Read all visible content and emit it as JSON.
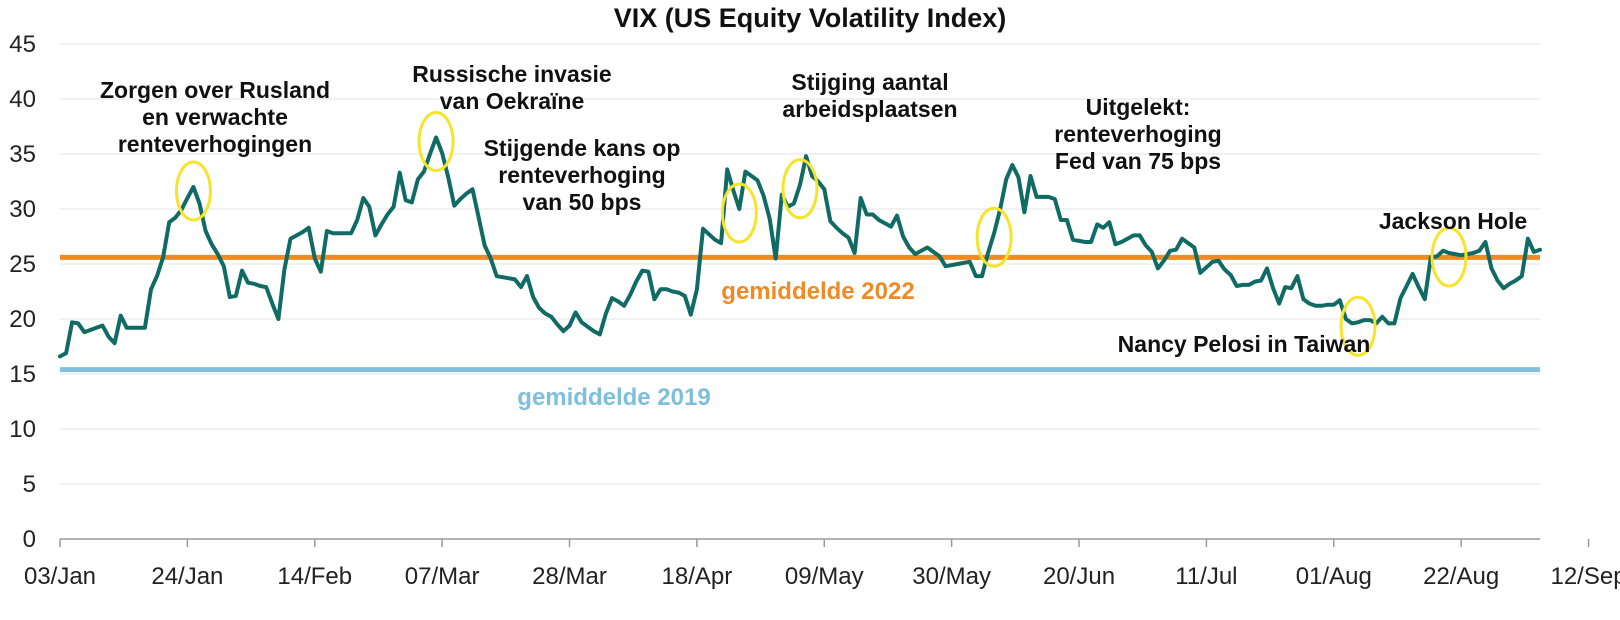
{
  "chart_data": {
    "type": "line",
    "title": "VIX (US Equity Volatility Index)",
    "xlabel": "",
    "ylabel": "",
    "ylim": [
      0,
      45
    ],
    "yticks": [
      "0",
      "5",
      "10",
      "15",
      "20",
      "25",
      "30",
      "35",
      "40",
      "45"
    ],
    "xticks": [
      "03/Jan",
      "24/Jan",
      "14/Feb",
      "07/Mar",
      "28/Mar",
      "18/Apr",
      "09/May",
      "30/May",
      "20/Jun",
      "11/Jul",
      "01/Aug",
      "22/Aug",
      "12/Sep"
    ],
    "grid": true,
    "colors": {
      "series": "#0f6b63",
      "avg_2022": "#f08a24",
      "avg_2019": "#7ec0dc",
      "highlight": "#f7e32a"
    },
    "series": [
      {
        "values": [
          16.6,
          16.9,
          19.7,
          19.6,
          18.8,
          19.0,
          19.2,
          19.4,
          18.4,
          17.8,
          20.3,
          19.2,
          19.2,
          19.2,
          19.2,
          22.7,
          23.9,
          25.6,
          28.8,
          29.2,
          29.9,
          31.0,
          32.0,
          30.5,
          28.0,
          26.8,
          25.9,
          24.8,
          22.0,
          22.1,
          24.4,
          23.3,
          23.2,
          23.0,
          22.9,
          21.4,
          20.0,
          24.5,
          27.3,
          27.6,
          27.9,
          28.3,
          25.5,
          24.3,
          28.0,
          27.8,
          27.8,
          27.8,
          27.8,
          29.0,
          31.0,
          30.2,
          27.6,
          28.6,
          29.5,
          30.2,
          33.3,
          30.8,
          30.6,
          32.7,
          33.4,
          35.0,
          36.5,
          35.1,
          32.9,
          30.3,
          30.9,
          31.4,
          31.8,
          29.3,
          26.7,
          25.5,
          23.9,
          23.8,
          23.7,
          23.6,
          22.9,
          23.9,
          22.0,
          21.0,
          20.5,
          20.2,
          19.5,
          18.9,
          19.4,
          20.6,
          19.7,
          19.3,
          18.9,
          18.6,
          20.5,
          21.9,
          21.6,
          21.2,
          22.2,
          23.4,
          24.4,
          24.3,
          21.8,
          22.7,
          22.7,
          22.5,
          22.4,
          22.1,
          20.4,
          22.7,
          28.2,
          27.7,
          27.2,
          26.9,
          33.6,
          31.7,
          30.0,
          33.4,
          33.0,
          32.6,
          31.2,
          29.1,
          25.5,
          31.3,
          30.2,
          30.5,
          32.2,
          34.8,
          33.0,
          32.5,
          31.8,
          28.9,
          28.3,
          27.8,
          27.4,
          26.0,
          31.0,
          29.5,
          29.5,
          29.0,
          28.7,
          28.4,
          29.4,
          27.5,
          26.5,
          25.9,
          26.2,
          26.5,
          26.1,
          25.7,
          24.8,
          24.9,
          25.0,
          25.1,
          25.2,
          23.9,
          23.9,
          26.0,
          27.8,
          30.0,
          32.7,
          34.0,
          32.9,
          29.7,
          33.0,
          31.1,
          31.1,
          31.1,
          30.9,
          29.0,
          29.0,
          27.2,
          27.1,
          27.0,
          27.0,
          28.6,
          28.3,
          28.8,
          26.8,
          27.0,
          27.3,
          27.6,
          27.6,
          26.7,
          26.1,
          24.6,
          25.3,
          26.2,
          26.3,
          27.3,
          26.9,
          26.5,
          24.2,
          24.7,
          25.2,
          25.3,
          24.5,
          24.0,
          23.0,
          23.1,
          23.1,
          23.4,
          23.5,
          24.6,
          22.8,
          21.4,
          22.9,
          22.8,
          23.9,
          21.8,
          21.4,
          21.2,
          21.2,
          21.3,
          21.3,
          21.7,
          20.0,
          19.6,
          19.7,
          19.9,
          19.9,
          19.6,
          20.2,
          19.6,
          19.6,
          21.9,
          23.0,
          24.1,
          22.9,
          21.8,
          25.6,
          25.7,
          26.2,
          26.0,
          25.9,
          25.8,
          25.9,
          26.0,
          26.2,
          27.0,
          24.6,
          23.5,
          22.8,
          23.2,
          23.5,
          23.9,
          27.3,
          26.1,
          26.3
        ]
      }
    ],
    "reference_lines": [
      {
        "name": "gemiddelde 2022",
        "value": 25.6
      },
      {
        "name": "gemiddelde 2019",
        "value": 15.4
      }
    ],
    "annotations": [
      {
        "lines": [
          "Zorgen over Rusland",
          "en verwachte",
          "renteverhogingen"
        ]
      },
      {
        "lines": [
          "Russische invasie",
          "van Oekraïne"
        ]
      },
      {
        "lines": [
          "Stijgende kans op",
          "renteverhoging",
          "van 50 bps"
        ]
      },
      {
        "lines": [
          "Stijging aantal",
          "arbeidsplaatsen"
        ]
      },
      {
        "lines": [
          "Uitgelekt:",
          "renteverhoging",
          "Fed van 75 bps"
        ]
      },
      {
        "lines": [
          "Jackson Hole"
        ]
      },
      {
        "lines": [
          "Nancy Pelosi in Taiwan"
        ]
      }
    ],
    "highlight_indices": [
      22,
      62,
      112,
      122,
      154,
      214,
      229
    ]
  }
}
